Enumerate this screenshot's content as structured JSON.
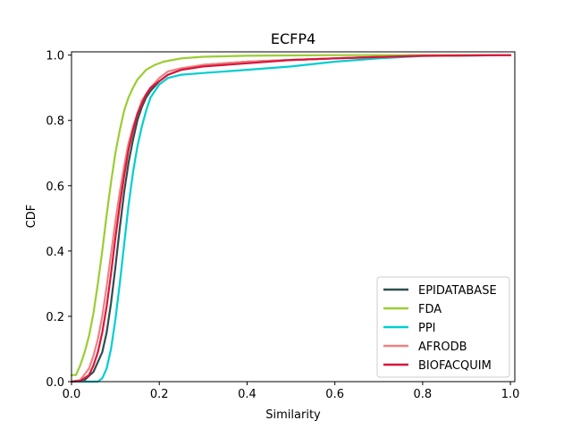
{
  "chart_data": {
    "type": "line",
    "title": "ECFP4",
    "xlabel": "Similarity",
    "ylabel": "CDF",
    "xlim": [
      0,
      1.01
    ],
    "ylim": [
      0,
      1.01
    ],
    "xticks": [
      0.0,
      0.2,
      0.4,
      0.6,
      0.8,
      1.0
    ],
    "xtick_labels": [
      "0.0",
      "0.2",
      "0.4",
      "0.6",
      "0.8",
      "1.0"
    ],
    "yticks": [
      0.0,
      0.2,
      0.4,
      0.6,
      0.8,
      1.0
    ],
    "ytick_labels": [
      "0.0",
      "0.2",
      "0.4",
      "0.6",
      "0.8",
      "1.0"
    ],
    "grid": false,
    "legend_position": "lower-right",
    "series": [
      {
        "name": "EPIDATABASE",
        "color": "#2f4f4f",
        "x": [
          0.0,
          0.03,
          0.05,
          0.07,
          0.08,
          0.09,
          0.1,
          0.11,
          0.12,
          0.13,
          0.14,
          0.15,
          0.16,
          0.17,
          0.18,
          0.2,
          0.22,
          0.25,
          0.3,
          0.4,
          0.5,
          0.6,
          0.7,
          0.8,
          1.0
        ],
        "y": [
          0.0,
          0.005,
          0.03,
          0.09,
          0.15,
          0.24,
          0.35,
          0.47,
          0.58,
          0.67,
          0.74,
          0.8,
          0.84,
          0.87,
          0.89,
          0.92,
          0.94,
          0.955,
          0.97,
          0.98,
          0.985,
          0.99,
          0.995,
          0.998,
          1.0
        ]
      },
      {
        "name": "FDA",
        "color": "#9acd32",
        "x": [
          0.0,
          0.01,
          0.02,
          0.03,
          0.04,
          0.05,
          0.06,
          0.07,
          0.08,
          0.09,
          0.1,
          0.11,
          0.12,
          0.13,
          0.14,
          0.15,
          0.17,
          0.19,
          0.21,
          0.25,
          0.3,
          0.4,
          0.6,
          1.0
        ],
        "y": [
          0.02,
          0.02,
          0.05,
          0.09,
          0.14,
          0.21,
          0.3,
          0.4,
          0.51,
          0.61,
          0.7,
          0.77,
          0.83,
          0.87,
          0.9,
          0.925,
          0.955,
          0.97,
          0.98,
          0.99,
          0.995,
          0.998,
          1.0,
          1.0
        ]
      },
      {
        "name": "PPI",
        "color": "#00ced1",
        "x": [
          0.0,
          0.06,
          0.07,
          0.08,
          0.09,
          0.1,
          0.11,
          0.12,
          0.13,
          0.14,
          0.15,
          0.16,
          0.17,
          0.18,
          0.2,
          0.22,
          0.25,
          0.3,
          0.4,
          0.5,
          0.6,
          0.7,
          0.8,
          1.0
        ],
        "y": [
          0.0,
          0.0,
          0.01,
          0.04,
          0.1,
          0.19,
          0.3,
          0.42,
          0.54,
          0.64,
          0.72,
          0.78,
          0.83,
          0.87,
          0.91,
          0.93,
          0.94,
          0.945,
          0.955,
          0.965,
          0.98,
          0.99,
          0.997,
          1.0
        ]
      },
      {
        "name": "AFRODB",
        "color": "#f08080",
        "x": [
          0.0,
          0.02,
          0.04,
          0.05,
          0.06,
          0.07,
          0.08,
          0.09,
          0.1,
          0.11,
          0.12,
          0.13,
          0.14,
          0.15,
          0.16,
          0.17,
          0.18,
          0.2,
          0.22,
          0.25,
          0.3,
          0.4,
          0.5,
          0.6,
          0.8,
          1.0
        ],
        "y": [
          0.0,
          0.005,
          0.04,
          0.08,
          0.13,
          0.2,
          0.29,
          0.39,
          0.49,
          0.58,
          0.66,
          0.73,
          0.78,
          0.82,
          0.86,
          0.88,
          0.9,
          0.93,
          0.95,
          0.96,
          0.97,
          0.98,
          0.985,
          0.99,
          0.998,
          1.0
        ]
      },
      {
        "name": "BIOFACQUIM",
        "color": "#dc143c",
        "x": [
          0.0,
          0.02,
          0.04,
          0.05,
          0.06,
          0.07,
          0.08,
          0.09,
          0.1,
          0.11,
          0.12,
          0.13,
          0.14,
          0.15,
          0.16,
          0.17,
          0.18,
          0.2,
          0.22,
          0.25,
          0.3,
          0.4,
          0.5,
          0.6,
          0.8,
          1.0
        ],
        "y": [
          0.0,
          0.002,
          0.02,
          0.05,
          0.09,
          0.15,
          0.23,
          0.33,
          0.44,
          0.54,
          0.63,
          0.71,
          0.77,
          0.82,
          0.85,
          0.88,
          0.9,
          0.92,
          0.94,
          0.955,
          0.965,
          0.975,
          0.985,
          0.99,
          0.998,
          1.0
        ]
      }
    ]
  }
}
